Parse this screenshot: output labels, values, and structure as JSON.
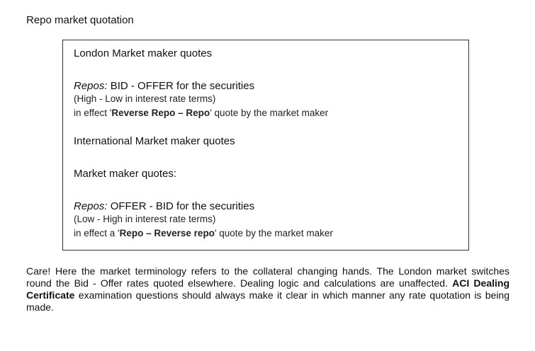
{
  "title": "Repo market quotation",
  "box": {
    "london_heading": "London Market maker quotes",
    "london_repos_label": "Repos:",
    "london_repos_text": " BID - OFFER for the securities",
    "london_range": "(High - Low in interest rate terms)",
    "london_effect_prefix": "in effect '",
    "london_effect_bold": "Reverse Repo – Repo",
    "london_effect_suffix": "' quote by the market maker",
    "intl_heading": "International Market maker quotes",
    "mm_heading": "Market maker quotes:",
    "intl_repos_label": "Repos:",
    "intl_repos_text": " OFFER - BID for the securities",
    "intl_range": "(Low - High in interest rate terms)",
    "intl_effect_prefix": "in effect a '",
    "intl_effect_bold": "Repo – Reverse repo",
    "intl_effect_suffix": "' quote by the market maker"
  },
  "note": {
    "part1": "Care! Here the market terminology refers to the collateral changing hands. The London market switches round the Bid - Offer rates quoted elsewhere. Dealing logic and calculations are unaffected. ",
    "bold": "ACI Dealing Certificate",
    "part2": " examination questions should always make it clear in which manner any rate quotation is being made."
  }
}
